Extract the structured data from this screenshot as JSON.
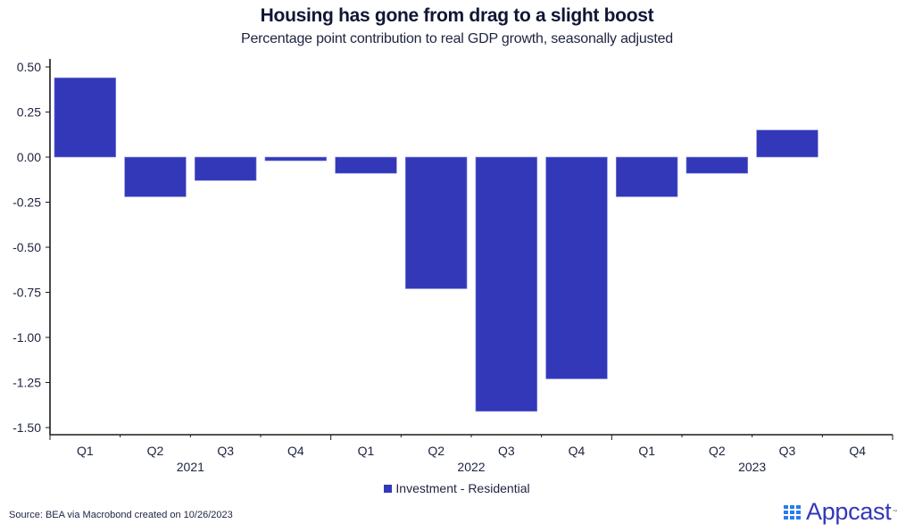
{
  "chart_data": {
    "type": "bar",
    "title": "Housing has gone from drag to a slight boost",
    "subtitle": "Percentage point contribution to real GDP growth, seasonally adjusted",
    "xlabel": "",
    "ylabel": "",
    "categories": [
      "Q1 2021",
      "Q2 2021",
      "Q3 2021",
      "Q4 2021",
      "Q1 2022",
      "Q2 2022",
      "Q3 2022",
      "Q4 2022",
      "Q1 2023",
      "Q2 2023",
      "Q3 2023",
      "Q4 2023"
    ],
    "quarter_labels": [
      "Q1",
      "Q2",
      "Q3",
      "Q4",
      "Q1",
      "Q2",
      "Q3",
      "Q4",
      "Q1",
      "Q2",
      "Q3",
      "Q4"
    ],
    "year_labels": [
      {
        "label": "2021",
        "span": [
          0,
          3
        ]
      },
      {
        "label": "2022",
        "span": [
          4,
          7
        ]
      },
      {
        "label": "2023",
        "span": [
          8,
          11
        ]
      }
    ],
    "series": [
      {
        "name": "Investment - Residential",
        "color": "#3338b9",
        "values": [
          0.44,
          -0.22,
          -0.13,
          -0.02,
          -0.09,
          -0.73,
          -1.41,
          -1.23,
          -0.22,
          -0.09,
          0.15,
          null
        ]
      }
    ],
    "ylim": [
      -1.5,
      0.5
    ],
    "yticks": [
      0.5,
      0.25,
      0.0,
      -0.25,
      -0.5,
      -0.75,
      -1.0,
      -1.25,
      -1.5
    ],
    "ytick_labels": [
      "0.50",
      "0.25",
      "0.00",
      "-0.25",
      "-0.50",
      "-0.75",
      "-1.00",
      "-1.25",
      "-1.50"
    ],
    "grid": false,
    "legend_position": "bottom-center"
  },
  "header": {
    "title": "Housing has gone from drag to a slight boost",
    "subtitle": "Percentage point contribution to real GDP growth, seasonally adjusted"
  },
  "legend": {
    "label": "Investment - Residential"
  },
  "footer": {
    "source": "Source: BEA via Macrobond created on 10/26/2023",
    "logo_text": "Appcast",
    "logo_tm": "™"
  }
}
